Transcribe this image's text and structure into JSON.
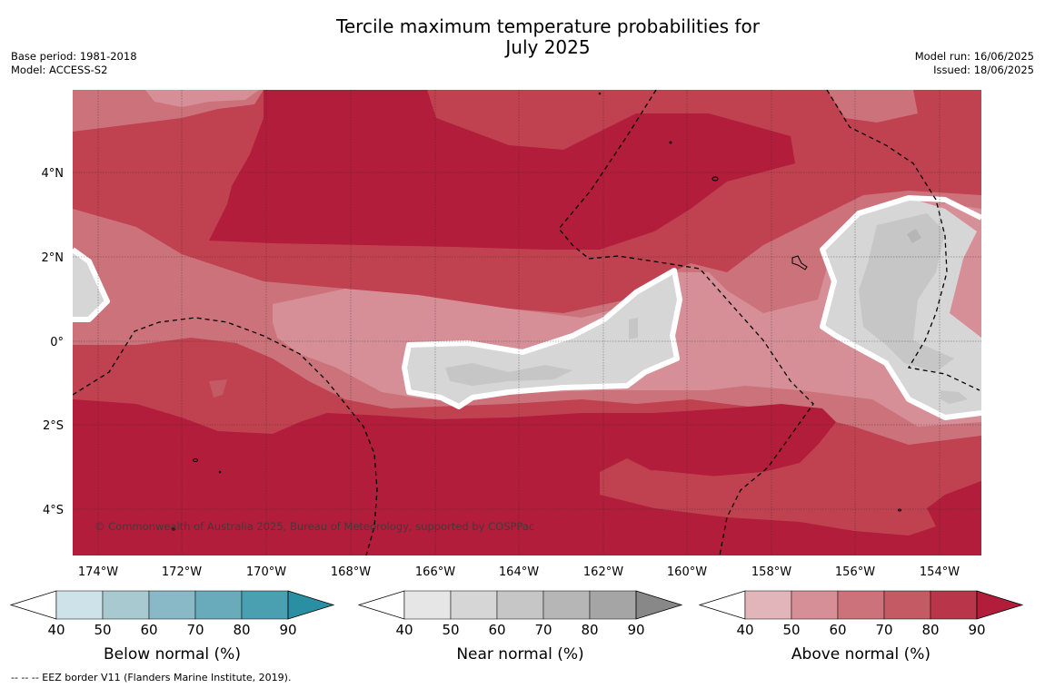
{
  "title_line1": "Tercile maximum temperature probabilities for",
  "title_line2": "July 2025",
  "base_period": "Base period: 1981-2018",
  "model": "Model: ACCESS-S2",
  "model_run": "Model run: 16/06/2025",
  "issued": "Issued: 18/06/2025",
  "copyright": "© Commonwealth of Australia 2025, Bureau of Meteorology, supported by COSPPac",
  "footnote": "--  --  -- EEZ border V11 (Flanders Marine Institute, 2019).",
  "lat_ticks": [
    "4°N",
    "2°N",
    "0°",
    "2°S",
    "4°S"
  ],
  "lon_ticks": [
    "174°W",
    "172°W",
    "170°W",
    "168°W",
    "166°W",
    "164°W",
    "162°W",
    "160°W",
    "158°W",
    "156°W",
    "154°W"
  ],
  "colorbars": [
    {
      "label": "Below normal (%)",
      "ticks": [
        "40",
        "50",
        "60",
        "70",
        "80",
        "90"
      ],
      "colors": [
        "#ffffff",
        "#cde3e9",
        "#a9c9d0",
        "#89b8c6",
        "#6aabbb",
        "#4aa0b0",
        "#2b8fa3"
      ]
    },
    {
      "label": "Near normal (%)",
      "ticks": [
        "40",
        "50",
        "60",
        "70",
        "80",
        "90"
      ],
      "colors": [
        "#ffffff",
        "#e6e6e6",
        "#d6d6d6",
        "#c6c6c6",
        "#b6b6b6",
        "#a5a5a5",
        "#888888"
      ]
    },
    {
      "label": "Above normal (%)",
      "ticks": [
        "40",
        "50",
        "60",
        "70",
        "80",
        "90"
      ],
      "colors": [
        "#ffffff",
        "#e2b5ba",
        "#d68f97",
        "#cc727b",
        "#c45a64",
        "#b93549",
        "#b11d3a"
      ]
    }
  ]
}
